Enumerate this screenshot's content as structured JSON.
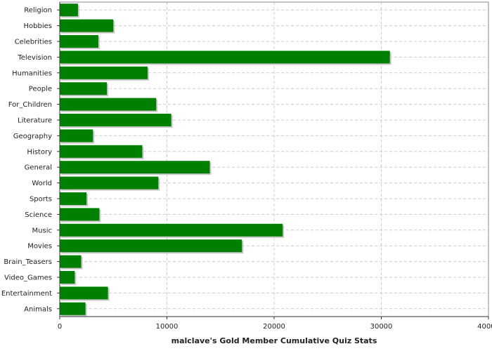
{
  "chart_data": {
    "type": "bar",
    "orientation": "horizontal",
    "categories": [
      "Religion",
      "Hobbies",
      "Celebrities",
      "Television",
      "Humanities",
      "People",
      "For_Children",
      "Literature",
      "Geography",
      "History",
      "General",
      "World",
      "Sports",
      "Science",
      "Music",
      "Movies",
      "Brain_Teasers",
      "Video_Games",
      "Entertainment",
      "Animals"
    ],
    "values": [
      1700,
      5000,
      3600,
      30800,
      8200,
      4400,
      9000,
      10400,
      3100,
      7700,
      14000,
      9200,
      2500,
      3700,
      20800,
      17000,
      2000,
      1400,
      4500,
      2400
    ],
    "title": "",
    "xlabel": "malclave's Gold Member Cumulative Quiz Stats",
    "ylabel": "",
    "xlim": [
      0,
      40000
    ],
    "xticks": [
      0,
      10000,
      20000,
      30000,
      40000
    ],
    "grid": true,
    "legend": "none",
    "bar_color": "#008000",
    "grid_color": "#cccccc"
  }
}
